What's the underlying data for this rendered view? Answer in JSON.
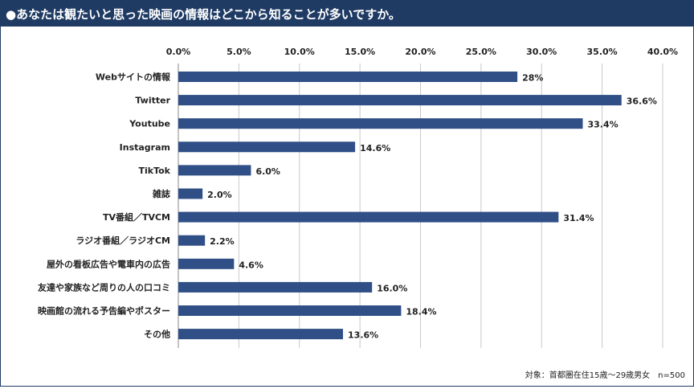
{
  "header": {
    "title": "●あなたは観たいと思った映画の情報はどこから知ることが多いですか。"
  },
  "footnote": "対象：首都圏在住15歳～29歳男女　n=500",
  "colors": {
    "header_bg": "#1f3b64",
    "bar": "#2f4f86",
    "grid": "#c8c8c8"
  },
  "chart_data": {
    "type": "bar",
    "orientation": "horizontal",
    "categories": [
      "Webサイトの情報",
      "Twitter",
      "Youtube",
      "Instagram",
      "TikTok",
      "雑誌",
      "TV番組／TVCM",
      "ラジオ番組／ラジオCM",
      "屋外の看板広告や電車内の広告",
      "友達や家族など周りの人の口コミ",
      "映画館の流れる予告編やポスター",
      "その他"
    ],
    "values": [
      28,
      36.6,
      33.4,
      14.6,
      6.0,
      2.0,
      31.4,
      2.2,
      4.6,
      16.0,
      18.4,
      13.6
    ],
    "value_labels": [
      "28%",
      "36.6%",
      "33.4%",
      "14.6%",
      "6.0%",
      "2.0%",
      "31.4%",
      "2.2%",
      "4.6%",
      "16.0%",
      "18.4%",
      "13.6%"
    ],
    "xlim": [
      0,
      40
    ],
    "xticks": [
      0,
      5,
      10,
      15,
      20,
      25,
      30,
      35,
      40
    ],
    "xtick_labels": [
      "0.0%",
      "5.0%",
      "10.0%",
      "15.0%",
      "20.0%",
      "25.0%",
      "30.0%",
      "35.0%",
      "40.0%"
    ],
    "axis_position": "top",
    "grid": true
  }
}
